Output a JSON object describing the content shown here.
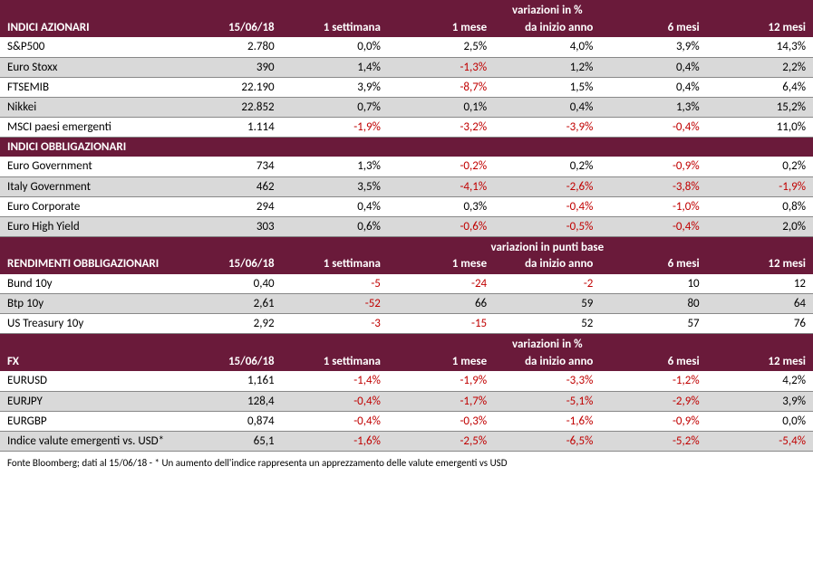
{
  "colors": {
    "header_bg": "#6a1a3a",
    "header_fg": "#ffffff",
    "row_alt": "#d9d9d9",
    "border": "#888888",
    "negative": "#c00000",
    "text": "#000000"
  },
  "columns_date": "15/06/18",
  "columns_changes": [
    "1 settimana",
    "1 mese",
    "da inizio anno",
    "6 mesi",
    "12 mesi"
  ],
  "sections": [
    {
      "title": "INDICI AZIONARI",
      "super": "variazioni in %",
      "show_cols": true,
      "rows": [
        {
          "label": "S&P500",
          "val": "2.780",
          "c": [
            "0,0%",
            "2,5%",
            "4,0%",
            "3,9%",
            "14,3%"
          ],
          "n": [
            0,
            0,
            0,
            0,
            0
          ]
        },
        {
          "label": "Euro Stoxx",
          "val": "390",
          "c": [
            "1,4%",
            "-1,3%",
            "1,2%",
            "0,4%",
            "2,2%"
          ],
          "n": [
            0,
            1,
            0,
            0,
            0
          ]
        },
        {
          "label": "FTSEMIB",
          "val": "22.190",
          "c": [
            "3,9%",
            "-8,7%",
            "1,5%",
            "0,4%",
            "6,4%"
          ],
          "n": [
            0,
            1,
            0,
            0,
            0
          ]
        },
        {
          "label": "Nikkei",
          "val": "22.852",
          "c": [
            "0,7%",
            "0,1%",
            "0,4%",
            "1,3%",
            "15,2%"
          ],
          "n": [
            0,
            0,
            0,
            0,
            0
          ]
        },
        {
          "label": "MSCI paesi emergenti",
          "val": "1.114",
          "c": [
            "-1,9%",
            "-3,2%",
            "-3,9%",
            "-0,4%",
            "11,0%"
          ],
          "n": [
            1,
            1,
            1,
            1,
            0
          ]
        }
      ]
    },
    {
      "title": "INDICI OBBLIGAZIONARI",
      "super": null,
      "show_cols": false,
      "rows": [
        {
          "label": "Euro Government",
          "val": "734",
          "c": [
            "1,3%",
            "-0,2%",
            "0,2%",
            "-0,9%",
            "0,2%"
          ],
          "n": [
            0,
            1,
            0,
            1,
            0
          ]
        },
        {
          "label": "Italy Government",
          "val": "462",
          "c": [
            "3,5%",
            "-4,1%",
            "-2,6%",
            "-3,8%",
            "-1,9%"
          ],
          "n": [
            0,
            1,
            1,
            1,
            1
          ]
        },
        {
          "label": "Euro Corporate",
          "val": "294",
          "c": [
            "0,4%",
            "0,3%",
            "-0,4%",
            "-1,0%",
            "0,8%"
          ],
          "n": [
            0,
            0,
            1,
            1,
            0
          ]
        },
        {
          "label": "Euro High Yield",
          "val": "303",
          "c": [
            "0,6%",
            "-0,6%",
            "-0,5%",
            "-0,4%",
            "2,0%"
          ],
          "n": [
            0,
            1,
            1,
            1,
            0
          ]
        }
      ]
    },
    {
      "title": "RENDIMENTI OBBLIGAZIONARI",
      "super": "variazioni in punti base",
      "show_cols": true,
      "rows": [
        {
          "label": "Bund 10y",
          "val": "0,40",
          "c": [
            "-5",
            "-24",
            "-2",
            "10",
            "12"
          ],
          "n": [
            1,
            1,
            1,
            0,
            0
          ]
        },
        {
          "label": "Btp 10y",
          "val": "2,61",
          "c": [
            "-52",
            "66",
            "59",
            "80",
            "64"
          ],
          "n": [
            1,
            0,
            0,
            0,
            0
          ]
        },
        {
          "label": "US Treasury 10y",
          "val": "2,92",
          "c": [
            "-3",
            "-15",
            "52",
            "57",
            "76"
          ],
          "n": [
            1,
            1,
            0,
            0,
            0
          ]
        }
      ]
    },
    {
      "title": "FX",
      "super": "variazioni in %",
      "show_cols": true,
      "rows": [
        {
          "label": "EURUSD",
          "val": "1,161",
          "c": [
            "-1,4%",
            "-1,9%",
            "-3,3%",
            "-1,2%",
            "4,2%"
          ],
          "n": [
            1,
            1,
            1,
            1,
            0
          ]
        },
        {
          "label": "EURJPY",
          "val": "128,4",
          "c": [
            "-0,4%",
            "-1,7%",
            "-5,1%",
            "-2,9%",
            "3,9%"
          ],
          "n": [
            1,
            1,
            1,
            1,
            0
          ]
        },
        {
          "label": "EURGBP",
          "val": "0,874",
          "c": [
            "-0,4%",
            "-0,3%",
            "-1,6%",
            "-0,9%",
            "0,0%"
          ],
          "n": [
            1,
            1,
            1,
            1,
            0
          ]
        },
        {
          "label": "Indice valute emergenti vs. USD*",
          "val": "65,1",
          "c": [
            "-1,6%",
            "-2,5%",
            "-6,5%",
            "-5,2%",
            "-5,4%"
          ],
          "n": [
            1,
            1,
            1,
            1,
            1
          ]
        }
      ]
    }
  ],
  "footnote": "Fonte Bloomberg; dati al 15/06/18 - * Un aumento dell'indice rappresenta un apprezzamento delle valute emergenti vs USD"
}
